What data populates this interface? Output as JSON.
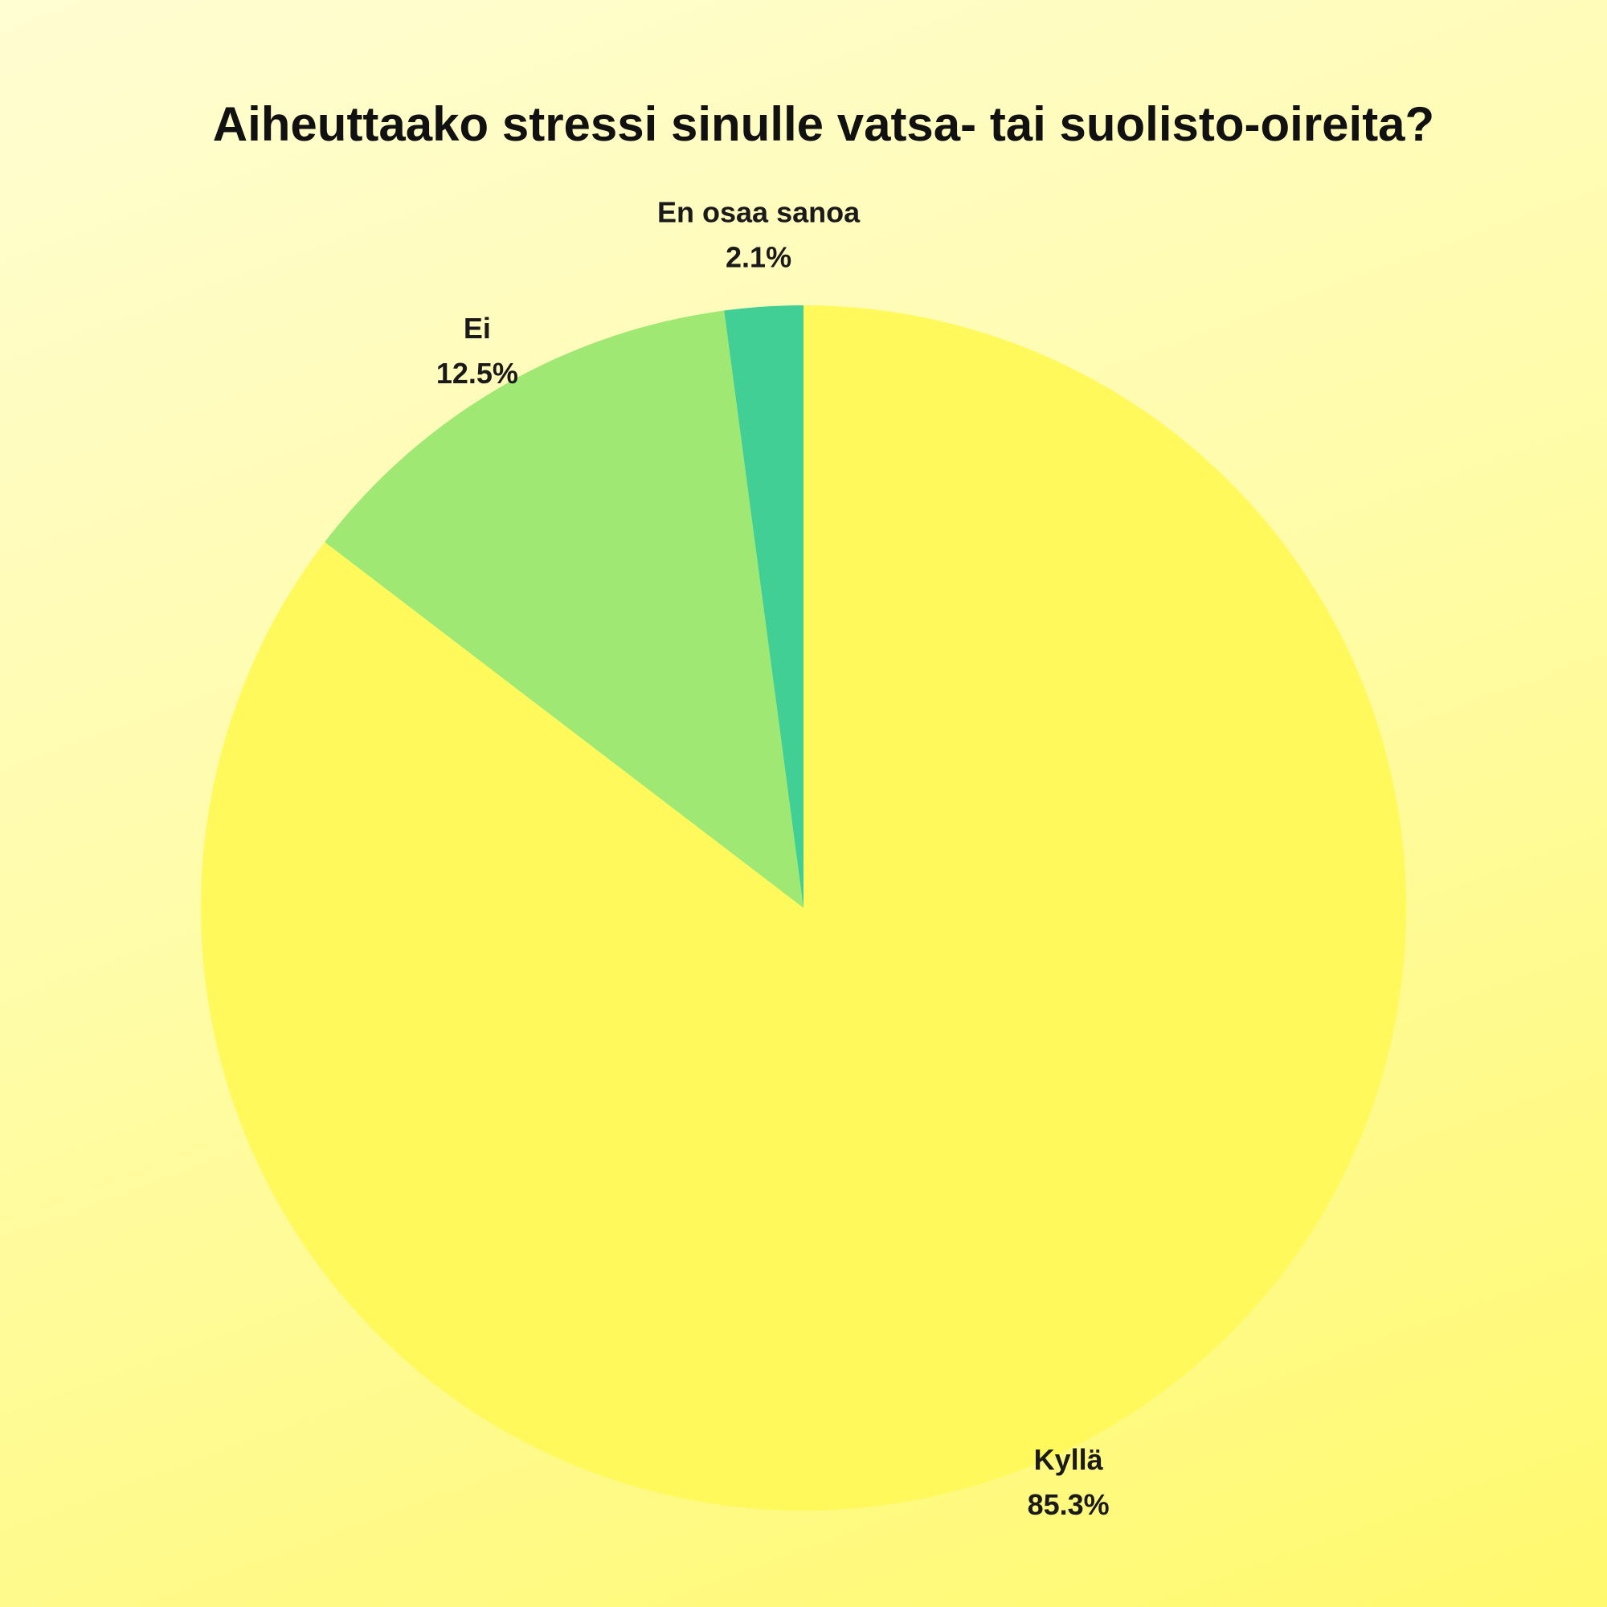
{
  "chart_data": {
    "type": "pie",
    "title": "Aiheuttaako stressi sinulle vatsa- tai suolisto-oireita?",
    "slices": [
      {
        "label": "Kyllä",
        "value": 85.3,
        "display": "85.3%",
        "color": "#fff95b"
      },
      {
        "label": "Ei",
        "value": 12.5,
        "display": "12.5%",
        "color": "#9fe874"
      },
      {
        "label": "En osaa sanoa",
        "value": 2.1,
        "display": "2.1%",
        "color": "#42cf95"
      }
    ],
    "start_angle": "12 o'clock",
    "direction": "clockwise",
    "legend": "none"
  }
}
